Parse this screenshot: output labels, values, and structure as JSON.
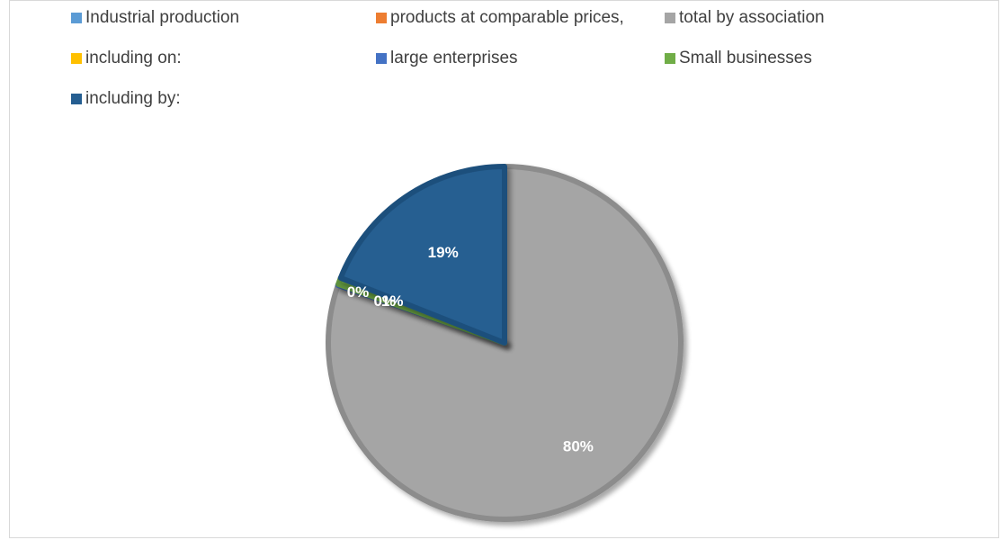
{
  "chart_data": {
    "type": "pie",
    "title": "",
    "legend_position": "top",
    "series": [
      {
        "name": "Industrial production",
        "value": 0.0,
        "label": "",
        "color": "#5b9bd5"
      },
      {
        "name": "products at comparable prices,",
        "value": 0.0,
        "label": "",
        "color": "#ed7d31"
      },
      {
        "name": "total by association",
        "value": 80.3,
        "label": "80%",
        "color": "#a5a5a5"
      },
      {
        "name": "including on:",
        "value": 0.0,
        "label": "0%",
        "color": "#ffc000"
      },
      {
        "name": "large enterprises",
        "value": 0.1,
        "label": "0%",
        "color": "#4472c4"
      },
      {
        "name": "Small businesses",
        "value": 0.6,
        "label": "1%",
        "color": "#70ad47"
      },
      {
        "name": "including by:",
        "value": 19.0,
        "label": "19%",
        "color": "#255e91"
      }
    ]
  }
}
